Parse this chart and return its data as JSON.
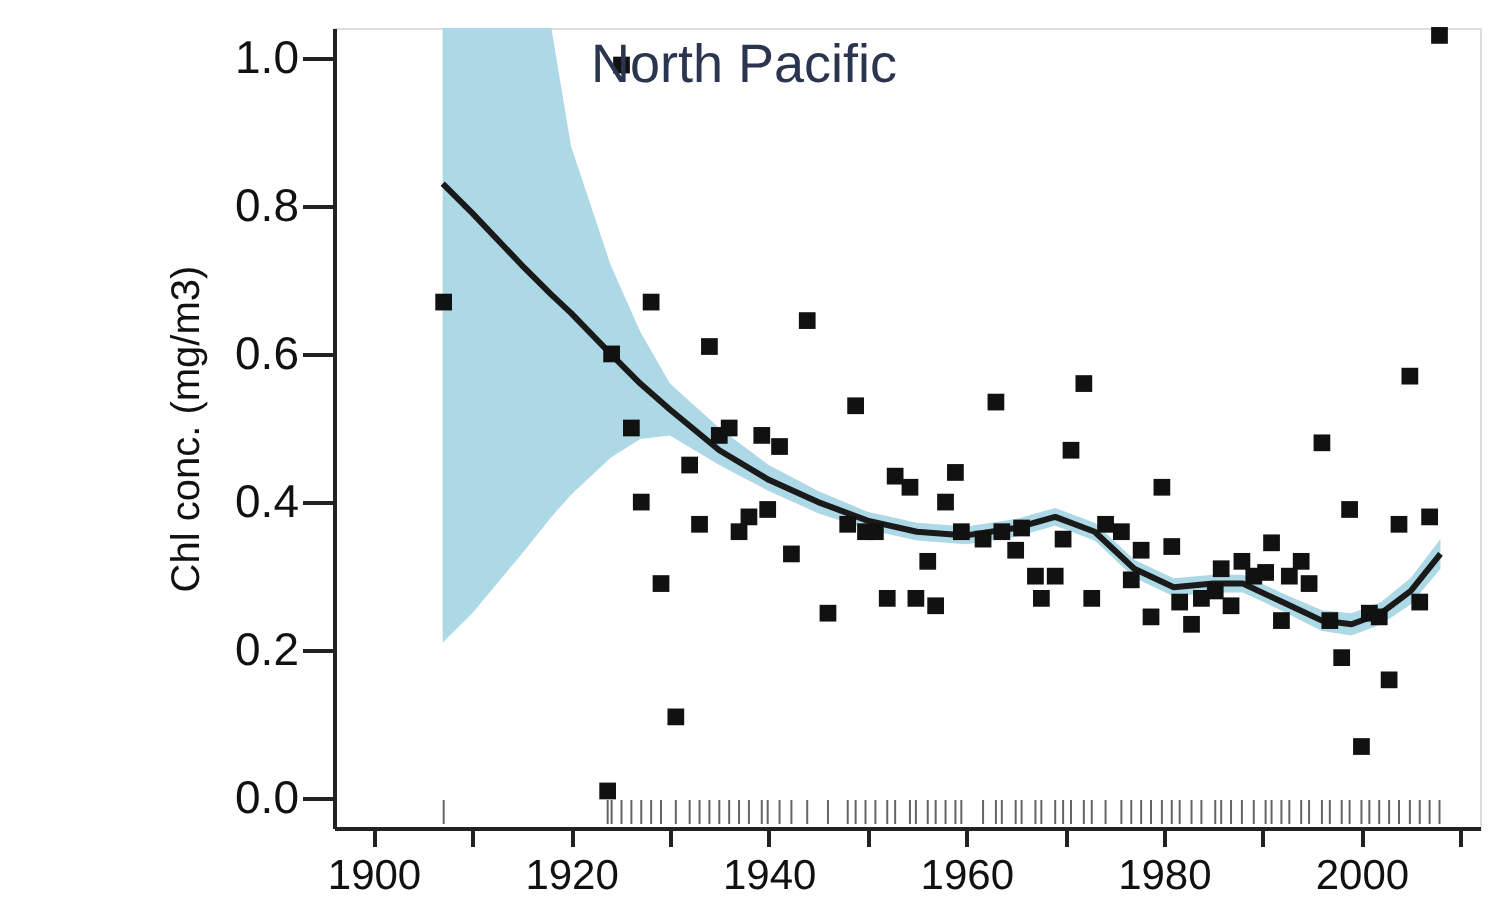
{
  "chart_data": {
    "type": "scatter",
    "title": "North Pacific",
    "ylabel": "Chl conc. (mg/m3)",
    "xlim": [
      1896,
      2012
    ],
    "ylim": [
      -0.04,
      1.04
    ],
    "xticks": [
      1900,
      {
        "value": 1910,
        "label": null
      },
      1920,
      {
        "value": 1930,
        "label": null
      },
      1940,
      {
        "value": 1950,
        "label": null
      },
      1960,
      {
        "value": 1970,
        "label": null
      },
      1980,
      {
        "value": 1990,
        "label": null
      },
      2000,
      {
        "value": 2010,
        "label": null
      }
    ],
    "yticks": [
      {
        "value": 0,
        "label": "0.0"
      },
      {
        "value": 0.2,
        "label": "0.2"
      },
      {
        "value": 0.4,
        "label": "0.4"
      },
      {
        "value": 0.6,
        "label": "0.6"
      },
      {
        "value": 0.8,
        "label": "0.8"
      },
      {
        "value": 1,
        "label": "1.0"
      }
    ],
    "grid": false,
    "series": [
      {
        "marker": "square",
        "color": "#111111",
        "x": [
          1907.1,
          1923.7,
          1924.1,
          1925.1,
          1926.1,
          1927.1,
          1928.1,
          1929.1,
          1930.6,
          1932,
          1933,
          1934,
          1935,
          1936,
          1937,
          1938,
          1939.3,
          1939.9,
          1941.1,
          1942.3,
          1943.9,
          1946,
          1948,
          1948.8,
          1949.8,
          1950.8,
          1952,
          1952.8,
          1954.3,
          1954.9,
          1956.1,
          1956.9,
          1957.9,
          1958.9,
          1959.5,
          1961.7,
          1963,
          1963.6,
          1965,
          1965.6,
          1967,
          1967.6,
          1969,
          1969.8,
          1970.6,
          1971.9,
          1972.7,
          1974.1,
          1975.7,
          1976.7,
          1977.7,
          1978.7,
          1979.8,
          1980.8,
          1981.6,
          1982.8,
          1983.8,
          1985.2,
          1985.8,
          1986.8,
          1987.9,
          1989.1,
          1990.3,
          1990.9,
          1991.9,
          1992.7,
          1993.9,
          1994.7,
          1996,
          1996.8,
          1998,
          1998.8,
          2000,
          2000.8,
          2001.8,
          2002.8,
          2003.8,
          2004.9,
          2005.9,
          2006.9,
          2007.9
        ],
        "values": [
          0.67,
          0.01,
          0.6,
          0.99,
          0.5,
          0.4,
          0.67,
          0.29,
          0.11,
          0.45,
          0.37,
          0.61,
          0.49,
          0.5,
          0.36,
          0.38,
          0.49,
          0.39,
          0.475,
          0.33,
          0.645,
          0.25,
          0.37,
          0.53,
          0.36,
          0.36,
          0.27,
          0.435,
          0.42,
          0.27,
          0.32,
          0.26,
          0.4,
          0.44,
          0.36,
          0.35,
          0.535,
          0.36,
          0.335,
          0.365,
          0.3,
          0.27,
          0.3,
          0.35,
          0.47,
          0.56,
          0.27,
          0.37,
          0.36,
          0.295,
          0.335,
          0.245,
          0.42,
          0.34,
          0.265,
          0.235,
          0.27,
          0.28,
          0.31,
          0.26,
          0.32,
          0.3,
          0.305,
          0.345,
          0.24,
          0.3,
          0.32,
          0.29,
          0.48,
          0.24,
          0.19,
          0.39,
          0.07,
          0.25,
          0.245,
          0.16,
          0.37,
          0.57,
          0.265,
          0.38,
          1.03
        ]
      },
      {
        "type": "line",
        "marker": "none",
        "line_style": "solid",
        "color": "#1a1a1a",
        "x": [
          1907,
          1910,
          1915,
          1918,
          1920,
          1924,
          1927,
          1930,
          1935,
          1940,
          1945,
          1950,
          1955,
          1960,
          1965,
          1969,
          1973,
          1977,
          1981,
          1985,
          1988,
          1992,
          1996,
          1999,
          2002,
          2005,
          2008
        ],
        "values": [
          0.83,
          0.79,
          0.72,
          0.68,
          0.655,
          0.6,
          0.56,
          0.525,
          0.47,
          0.43,
          0.4,
          0.375,
          0.36,
          0.355,
          0.365,
          0.38,
          0.36,
          0.31,
          0.285,
          0.29,
          0.29,
          0.265,
          0.24,
          0.235,
          0.25,
          0.28,
          0.33
        ],
        "upper": [
          1.04,
          1.04,
          1.04,
          1.04,
          0.88,
          0.72,
          0.63,
          0.56,
          0.5,
          0.45,
          0.415,
          0.387,
          0.372,
          0.367,
          0.377,
          0.392,
          0.372,
          0.322,
          0.297,
          0.302,
          0.302,
          0.277,
          0.254,
          0.25,
          0.265,
          0.298,
          0.35
        ],
        "lower": [
          0.21,
          0.25,
          0.33,
          0.38,
          0.41,
          0.46,
          0.485,
          0.49,
          0.45,
          0.415,
          0.385,
          0.363,
          0.348,
          0.343,
          0.353,
          0.368,
          0.348,
          0.298,
          0.273,
          0.278,
          0.278,
          0.253,
          0.226,
          0.22,
          0.235,
          0.262,
          0.31
        ]
      }
    ]
  }
}
